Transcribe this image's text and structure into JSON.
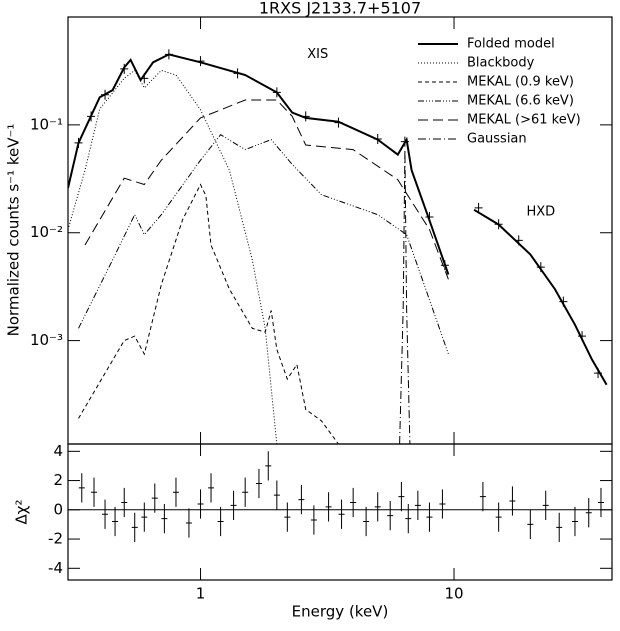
{
  "chart_data": [
    {
      "type": "line",
      "title": "1RXS J2133.7+5107",
      "ylabel": "Normalized counts s⁻¹ keV⁻¹",
      "xlog": true,
      "ylog": true,
      "xlim": [
        0.3,
        42
      ],
      "ylim": [
        0.00011,
        1
      ],
      "yticks": [
        {
          "value": 0.1,
          "label": "10⁻¹"
        },
        {
          "value": 0.01,
          "label": "10⁻²"
        },
        {
          "value": 0.001,
          "label": "10⁻³"
        }
      ],
      "legend": "upper right",
      "annotations": [
        {
          "text": "XIS",
          "x": 2.9,
          "y": 0.45
        },
        {
          "text": "HXD",
          "x": 22,
          "y": 0.0155
        }
      ],
      "series": [
        {
          "name": "Folded model",
          "color": "#000000",
          "width": 2,
          "x": [
            0.3,
            0.33,
            0.4,
            0.45,
            0.5,
            0.53,
            0.58,
            0.65,
            0.75,
            1.0,
            1.5,
            2.0,
            2.3,
            2.6,
            3.5,
            5,
            6,
            6.5,
            6.8,
            8,
            9.5,
            11,
            12,
            15,
            20,
            25,
            30,
            35,
            40
          ],
          "values": [
            0.026,
            0.068,
            0.18,
            0.21,
            0.34,
            0.4,
            0.26,
            0.38,
            0.45,
            0.38,
            0.29,
            0.2,
            0.13,
            0.116,
            0.107,
            0.073,
            0.053,
            0.073,
            0.038,
            0.013,
            0.0041,
            null,
            0.0163,
            0.0119,
            0.0063,
            0.003,
            0.0014,
            0.00067,
            0.00039
          ]
        },
        {
          "name": "Blackbody",
          "color": "#000000",
          "dash": "1,2",
          "x": [
            0.3,
            0.35,
            0.4,
            0.5,
            0.55,
            0.6,
            0.7,
            0.8,
            1.0,
            1.3,
            1.6,
            1.8,
            2.0
          ],
          "values": [
            0.0107,
            0.038,
            0.14,
            0.27,
            0.32,
            0.22,
            0.32,
            0.29,
            0.138,
            0.038,
            0.0056,
            0.0013,
            0.00011
          ]
        },
        {
          "name": "MEKAL (0.9 keV)",
          "color": "#000000",
          "dash": "4,3",
          "x": [
            0.33,
            0.5,
            0.55,
            0.6,
            0.7,
            0.85,
            1.0,
            1.05,
            1.1,
            1.3,
            1.6,
            1.8,
            1.9,
            2.0,
            2.2,
            2.4,
            2.6,
            3.0,
            3.5
          ],
          "values": [
            0.00019,
            0.001,
            0.0011,
            0.00075,
            0.0033,
            0.0132,
            0.028,
            0.022,
            0.0077,
            0.003,
            0.0013,
            0.0012,
            0.0019,
            0.00083,
            0.00044,
            0.0006,
            0.00023,
            0.00018,
            0.00011
          ]
        },
        {
          "name": "MEKAL (6.6 keV)",
          "color": "#000000",
          "dash": "6,2,1,2,1,2,1,2",
          "x": [
            0.33,
            0.45,
            0.55,
            0.6,
            0.7,
            1.0,
            1.2,
            1.5,
            1.9,
            2.3,
            3,
            5,
            6.5,
            7.5,
            9.5
          ],
          "values": [
            0.0013,
            0.0056,
            0.0147,
            0.0096,
            0.0147,
            0.047,
            0.081,
            0.059,
            0.073,
            0.043,
            0.0225,
            0.0147,
            0.0096,
            0.0037,
            0.00075
          ]
        },
        {
          "name": "MEKAL (>61 keV)",
          "color": "#000000",
          "dash": "10,5",
          "x": [
            0.35,
            0.5,
            0.6,
            0.7,
            1.0,
            1.5,
            2.0,
            2.3,
            2.6,
            4,
            6,
            8,
            9.5,
            11,
            12,
            15,
            20,
            25,
            30,
            35,
            40
          ],
          "values": [
            0.0077,
            0.032,
            0.028,
            0.047,
            0.116,
            0.17,
            0.17,
            0.12,
            0.065,
            0.059,
            0.031,
            0.0107,
            0.0037,
            null,
            0.0163,
            0.0119,
            0.0063,
            0.003,
            0.0014,
            0.00067,
            0.00039
          ]
        },
        {
          "name": "Gaussian",
          "color": "#000000",
          "dash": "8,3,1,3",
          "x": [
            6.1,
            6.3,
            6.4,
            6.5,
            6.7
          ],
          "values": [
            0.00011,
            0.002,
            0.059,
            0.002,
            0.00011
          ]
        },
        {
          "color": "#000000",
          "marker": "cross",
          "x": [
            0.33,
            0.37,
            0.42,
            0.5,
            0.6,
            0.75,
            1,
            1.4,
            2,
            2.6,
            3.5,
            5,
            6.4,
            8,
            9.2,
            12.5,
            15,
            18,
            22,
            27,
            32,
            37
          ],
          "values": [
            0.068,
            0.12,
            0.19,
            0.33,
            0.27,
            0.45,
            0.39,
            0.3,
            0.2,
            0.12,
            0.105,
            0.074,
            0.07,
            0.014,
            0.005,
            0.017,
            0.012,
            0.0085,
            0.0048,
            0.0023,
            0.0011,
            0.0005
          ]
        }
      ]
    },
    {
      "type": "scatter",
      "xlabel": "Energy (keV)",
      "ylabel": "Δχ²",
      "xlog": true,
      "xlim": [
        0.3,
        42
      ],
      "ylim": [
        -4.8,
        4.5
      ],
      "xticks": [
        1,
        10
      ],
      "yticks": [
        4,
        2,
        0,
        -2,
        -4
      ],
      "hline": 0,
      "series": [
        {
          "color": "#000000",
          "x": [
            0.34,
            0.38,
            0.42,
            0.46,
            0.5,
            0.55,
            0.6,
            0.66,
            0.72,
            0.8,
            0.9,
            1.0,
            1.1,
            1.2,
            1.35,
            1.5,
            1.7,
            1.85,
            2.0,
            2.2,
            2.5,
            2.8,
            3.2,
            3.6,
            4.0,
            4.5,
            5.0,
            5.6,
            6.2,
            6.6,
            7.2,
            8.0,
            9.0,
            13,
            15,
            17,
            20,
            23,
            26,
            30,
            34,
            38
          ],
          "values": [
            1.5,
            1.2,
            -0.3,
            -0.8,
            0.5,
            -1.2,
            -0.5,
            0.8,
            -0.6,
            1.2,
            -0.9,
            0.4,
            1.5,
            -0.8,
            0.3,
            1.2,
            1.8,
            3.0,
            1.0,
            -0.5,
            0.7,
            -0.7,
            0.2,
            -0.3,
            0.5,
            -0.8,
            0.2,
            -0.4,
            0.9,
            -0.6,
            0.3,
            -0.5,
            0.4,
            0.9,
            -0.5,
            0.6,
            -1.0,
            0.3,
            -1.2,
            -0.8,
            -0.2,
            0.5
          ],
          "errors": [
            1,
            1,
            1,
            1,
            1,
            1,
            1,
            1,
            1,
            1,
            1,
            1,
            1,
            1,
            1,
            1,
            1,
            1,
            1,
            1,
            1,
            1,
            1,
            1,
            1,
            1,
            1,
            1,
            1,
            1,
            1,
            1,
            1,
            1,
            1,
            1,
            1,
            1,
            1,
            1,
            1,
            1
          ]
        }
      ]
    }
  ]
}
